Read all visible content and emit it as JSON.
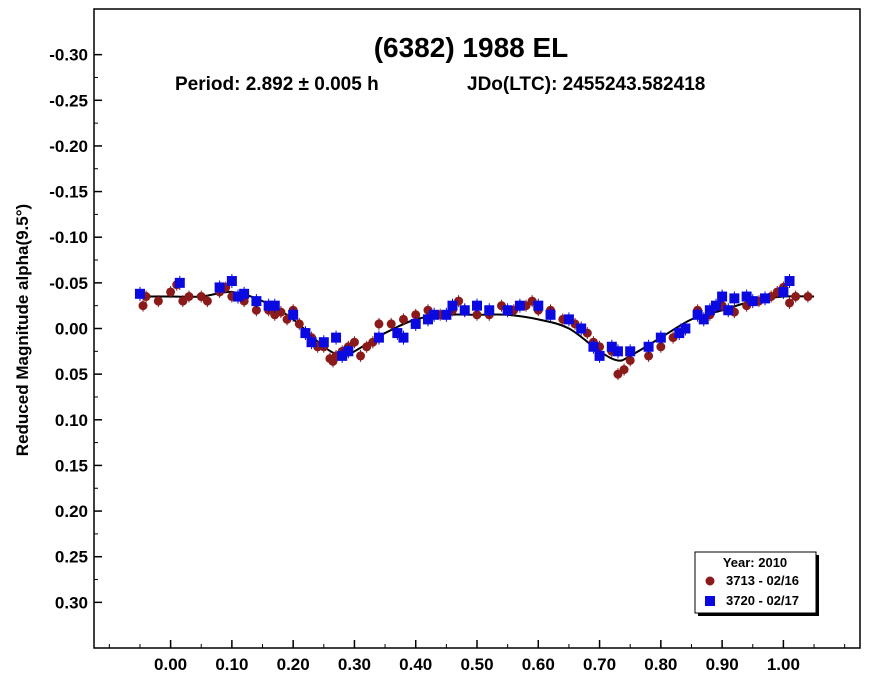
{
  "chart_data": {
    "type": "scatter",
    "title": "(6382) 1988 EL",
    "subtitle_left": "Period: 2.892 ± 0.005 h",
    "subtitle_right": "JDo(LTC): 2455243.582418",
    "xlabel": "",
    "ylabel": "Reduced Magnitude alpha(9.5°)",
    "xlim": [
      -0.125,
      1.125
    ],
    "ylim": [
      -0.35,
      0.35
    ],
    "y_inverted": true,
    "grid": false,
    "legend_position": "bottom-right",
    "x_ticks": [
      0.0,
      0.1,
      0.2,
      0.3,
      0.4,
      0.5,
      0.6,
      0.7,
      0.8,
      0.9,
      1.0
    ],
    "x_tick_labels": [
      "0.00",
      "0.10",
      "0.20",
      "0.30",
      "0.40",
      "0.50",
      "0.60",
      "0.70",
      "0.80",
      "0.90",
      "1.00"
    ],
    "y_ticks": [
      -0.3,
      -0.25,
      -0.2,
      -0.15,
      -0.1,
      -0.05,
      0.0,
      0.05,
      0.1,
      0.15,
      0.2,
      0.25,
      0.3
    ],
    "y_tick_labels": [
      "-0.30",
      "-0.25",
      "-0.20",
      "-0.15",
      "-0.10",
      "-0.05",
      "0.00",
      "0.05",
      "0.10",
      "0.15",
      "0.20",
      "0.25",
      "0.30"
    ],
    "legend_title": "Year: 2010",
    "fit_curve": {
      "x": [
        -0.05,
        0.0,
        0.05,
        0.1,
        0.15,
        0.2,
        0.25,
        0.28,
        0.3,
        0.35,
        0.4,
        0.45,
        0.5,
        0.55,
        0.6,
        0.65,
        0.7,
        0.73,
        0.75,
        0.8,
        0.85,
        0.9,
        0.95,
        1.0,
        1.05
      ],
      "y": [
        -0.035,
        -0.035,
        -0.035,
        -0.04,
        -0.03,
        -0.01,
        0.02,
        0.03,
        0.025,
        0.005,
        -0.01,
        -0.015,
        -0.015,
        -0.015,
        -0.01,
        0.0,
        0.025,
        0.035,
        0.03,
        0.01,
        -0.01,
        -0.02,
        -0.03,
        -0.035,
        -0.035
      ]
    },
    "series": [
      {
        "name": "3713 - 02/16",
        "marker": "circle",
        "color": "#8b1a1a",
        "x": [
          -0.045,
          -0.04,
          -0.02,
          0.0,
          0.01,
          0.02,
          0.03,
          0.05,
          0.06,
          0.08,
          0.09,
          0.1,
          0.12,
          0.14,
          0.16,
          0.17,
          0.18,
          0.19,
          0.2,
          0.21,
          0.22,
          0.23,
          0.24,
          0.25,
          0.26,
          0.265,
          0.27,
          0.28,
          0.29,
          0.3,
          0.31,
          0.32,
          0.33,
          0.34,
          0.36,
          0.38,
          0.4,
          0.42,
          0.44,
          0.46,
          0.47,
          0.48,
          0.5,
          0.52,
          0.54,
          0.56,
          0.58,
          0.59,
          0.6,
          0.62,
          0.64,
          0.66,
          0.68,
          0.69,
          0.7,
          0.72,
          0.73,
          0.74,
          0.75,
          0.78,
          0.8,
          0.82,
          0.84,
          0.86,
          0.88,
          0.9,
          0.92,
          0.94,
          0.96,
          0.98,
          0.99,
          1.0,
          1.01,
          1.02,
          1.04
        ],
        "y": [
          -0.025,
          -0.035,
          -0.03,
          -0.04,
          -0.048,
          -0.03,
          -0.035,
          -0.035,
          -0.03,
          -0.04,
          -0.045,
          -0.035,
          -0.03,
          -0.02,
          -0.02,
          -0.015,
          -0.018,
          -0.01,
          -0.02,
          -0.005,
          0.005,
          0.01,
          0.02,
          0.02,
          0.033,
          0.036,
          0.03,
          0.025,
          0.02,
          0.015,
          0.03,
          0.02,
          0.015,
          -0.005,
          -0.005,
          -0.01,
          -0.015,
          -0.02,
          -0.015,
          -0.02,
          -0.03,
          -0.02,
          -0.015,
          -0.015,
          -0.025,
          -0.02,
          -0.025,
          -0.03,
          -0.02,
          -0.02,
          -0.01,
          -0.005,
          0.005,
          0.015,
          0.02,
          0.025,
          0.05,
          0.045,
          0.035,
          0.03,
          0.02,
          0.01,
          0.0,
          -0.02,
          -0.015,
          -0.025,
          -0.018,
          -0.025,
          -0.03,
          -0.035,
          -0.04,
          -0.045,
          -0.028,
          -0.035,
          -0.035
        ]
      },
      {
        "name": "3720 - 02/17",
        "marker": "square",
        "color": "#0a0ae0",
        "x": [
          -0.05,
          0.015,
          0.08,
          0.1,
          0.11,
          0.12,
          0.14,
          0.16,
          0.17,
          0.2,
          0.22,
          0.23,
          0.25,
          0.27,
          0.28,
          0.29,
          0.34,
          0.37,
          0.38,
          0.4,
          0.42,
          0.43,
          0.45,
          0.46,
          0.48,
          0.5,
          0.52,
          0.55,
          0.57,
          0.6,
          0.62,
          0.65,
          0.67,
          0.69,
          0.7,
          0.72,
          0.73,
          0.75,
          0.78,
          0.8,
          0.83,
          0.84,
          0.86,
          0.87,
          0.88,
          0.89,
          0.9,
          0.91,
          0.92,
          0.94,
          0.95,
          0.97,
          1.0,
          1.01
        ],
        "y": [
          -0.038,
          -0.05,
          -0.045,
          -0.052,
          -0.035,
          -0.038,
          -0.03,
          -0.025,
          -0.025,
          -0.015,
          0.005,
          0.015,
          0.015,
          0.01,
          0.03,
          0.025,
          0.01,
          0.005,
          0.01,
          -0.005,
          -0.01,
          -0.015,
          -0.015,
          -0.025,
          -0.02,
          -0.025,
          -0.02,
          -0.02,
          -0.025,
          -0.025,
          -0.015,
          -0.01,
          0.0,
          0.02,
          0.03,
          0.02,
          0.025,
          0.025,
          0.02,
          0.01,
          0.005,
          0.0,
          -0.015,
          -0.01,
          -0.02,
          -0.025,
          -0.035,
          -0.02,
          -0.033,
          -0.035,
          -0.03,
          -0.033,
          -0.04,
          -0.052
        ]
      }
    ]
  }
}
